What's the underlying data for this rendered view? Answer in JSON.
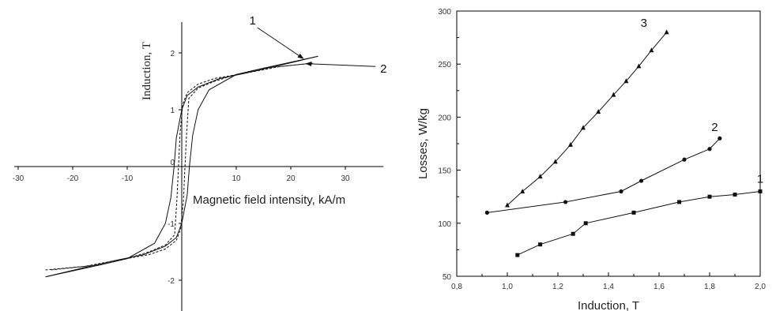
{
  "chart_data": [
    {
      "type": "line",
      "title": "",
      "xlabel": "Magnetic field intensity, kA/m",
      "ylabel": "Induction, T",
      "xlim": [
        -30,
        37
      ],
      "ylim": [
        -2.55,
        2.55
      ],
      "xticks": [
        -30,
        -20,
        -10,
        0,
        10,
        20,
        30
      ],
      "yticks": [
        -2,
        -1,
        0,
        1,
        2
      ],
      "tick_labels_x": [
        "-30",
        "-20",
        "-10",
        "0",
        "10",
        "20",
        "30"
      ],
      "tick_labels_y": [
        "-2",
        "-1",
        "0",
        "1",
        "2"
      ],
      "grid": false,
      "curve_labels": [
        {
          "text": "1",
          "label_at": [
            13,
            2.5
          ],
          "arrow_to": [
            22.3,
            1.9
          ]
        },
        {
          "text": "2",
          "label_at": [
            37,
            1.65
          ],
          "arrow_to": [
            22.8,
            1.81
          ]
        }
      ],
      "series": [
        {
          "style": "solid",
          "points": [
            [
              -25,
              -1.94
            ],
            [
              -15,
              -1.73
            ],
            [
              -10,
              -1.62
            ],
            [
              -5,
              -1.35
            ],
            [
              -3,
              -1.0
            ],
            [
              -2,
              -0.55
            ],
            [
              -1.4,
              0.0
            ],
            [
              -1,
              0.5
            ],
            [
              0,
              1.0
            ],
            [
              1,
              1.25
            ],
            [
              3,
              1.4
            ],
            [
              7,
              1.55
            ],
            [
              12,
              1.65
            ],
            [
              18,
              1.78
            ],
            [
              25,
              1.94
            ]
          ]
        },
        {
          "style": "solid",
          "points": [
            [
              25,
              1.94
            ],
            [
              15,
              1.73
            ],
            [
              10,
              1.62
            ],
            [
              5,
              1.35
            ],
            [
              3,
              1.0
            ],
            [
              2,
              0.55
            ],
            [
              1.4,
              0.0
            ],
            [
              1,
              -0.5
            ],
            [
              0,
              -1.0
            ],
            [
              -1,
              -1.25
            ],
            [
              -3,
              -1.4
            ],
            [
              -7,
              -1.55
            ],
            [
              -12,
              -1.65
            ],
            [
              -18,
              -1.78
            ],
            [
              -25,
              -1.94
            ]
          ]
        },
        {
          "style": "dashed",
          "points": [
            [
              -25,
              -1.82
            ],
            [
              -15,
              -1.73
            ],
            [
              -10,
              -1.62
            ],
            [
              -6,
              -1.5
            ],
            [
              -3,
              -1.38
            ],
            [
              -1.3,
              -1.2
            ],
            [
              -0.9,
              -0.6
            ],
            [
              -0.6,
              0.0
            ],
            [
              -0.3,
              0.6
            ],
            [
              0.2,
              1.1
            ],
            [
              1,
              1.3
            ],
            [
              3,
              1.45
            ],
            [
              6,
              1.55
            ],
            [
              12,
              1.65
            ],
            [
              18,
              1.76
            ],
            [
              24,
              1.82
            ]
          ]
        },
        {
          "style": "dashed",
          "points": [
            [
              24,
              1.82
            ],
            [
              15,
              1.73
            ],
            [
              10,
              1.62
            ],
            [
              6,
              1.5
            ],
            [
              3,
              1.38
            ],
            [
              1.3,
              1.2
            ],
            [
              0.9,
              0.6
            ],
            [
              0.6,
              0.0
            ],
            [
              0.3,
              -0.6
            ],
            [
              -0.2,
              -1.1
            ],
            [
              -1,
              -1.3
            ],
            [
              -3,
              -1.45
            ],
            [
              -6,
              -1.55
            ],
            [
              -12,
              -1.65
            ],
            [
              -18,
              -1.76
            ],
            [
              -24,
              -1.82
            ]
          ]
        }
      ]
    },
    {
      "type": "line",
      "title": "",
      "xlabel": "Induction, T",
      "ylabel": "Losses, W/kg",
      "xlim": [
        0.8,
        2.0
      ],
      "ylim": [
        50,
        300
      ],
      "xticks": [
        0.8,
        1.0,
        1.2,
        1.4,
        1.6,
        1.8,
        2.0
      ],
      "yticks": [
        50,
        100,
        150,
        200,
        250,
        300
      ],
      "tick_labels_x": [
        "0,8",
        "1,0",
        "1,2",
        "1,4",
        "1,6",
        "1,8",
        "2,0"
      ],
      "tick_labels_y": [
        "50",
        "100",
        "150",
        "200",
        "250",
        "300"
      ],
      "grid": false,
      "series": [
        {
          "name": "1",
          "marker": "square",
          "label_at": [
            2.0,
            138
          ],
          "x": [
            1.04,
            1.13,
            1.26,
            1.31,
            1.5,
            1.68,
            1.8,
            1.9,
            2.0
          ],
          "y": [
            70,
            80,
            90,
            100,
            110,
            120,
            125,
            127,
            130
          ]
        },
        {
          "name": "2",
          "marker": "circle",
          "label_at": [
            1.82,
            187
          ],
          "x": [
            0.92,
            1.23,
            1.45,
            1.53,
            1.7,
            1.8,
            1.84
          ],
          "y": [
            110,
            120,
            130,
            140,
            160,
            170,
            180
          ]
        },
        {
          "name": "3",
          "marker": "triangle",
          "label_at": [
            1.54,
            285
          ],
          "x": [
            1.0,
            1.06,
            1.13,
            1.19,
            1.25,
            1.3,
            1.36,
            1.42,
            1.47,
            1.52,
            1.57,
            1.63
          ],
          "y": [
            117,
            130,
            144,
            158,
            174,
            190,
            205,
            221,
            234,
            248,
            263,
            280
          ]
        }
      ]
    }
  ]
}
